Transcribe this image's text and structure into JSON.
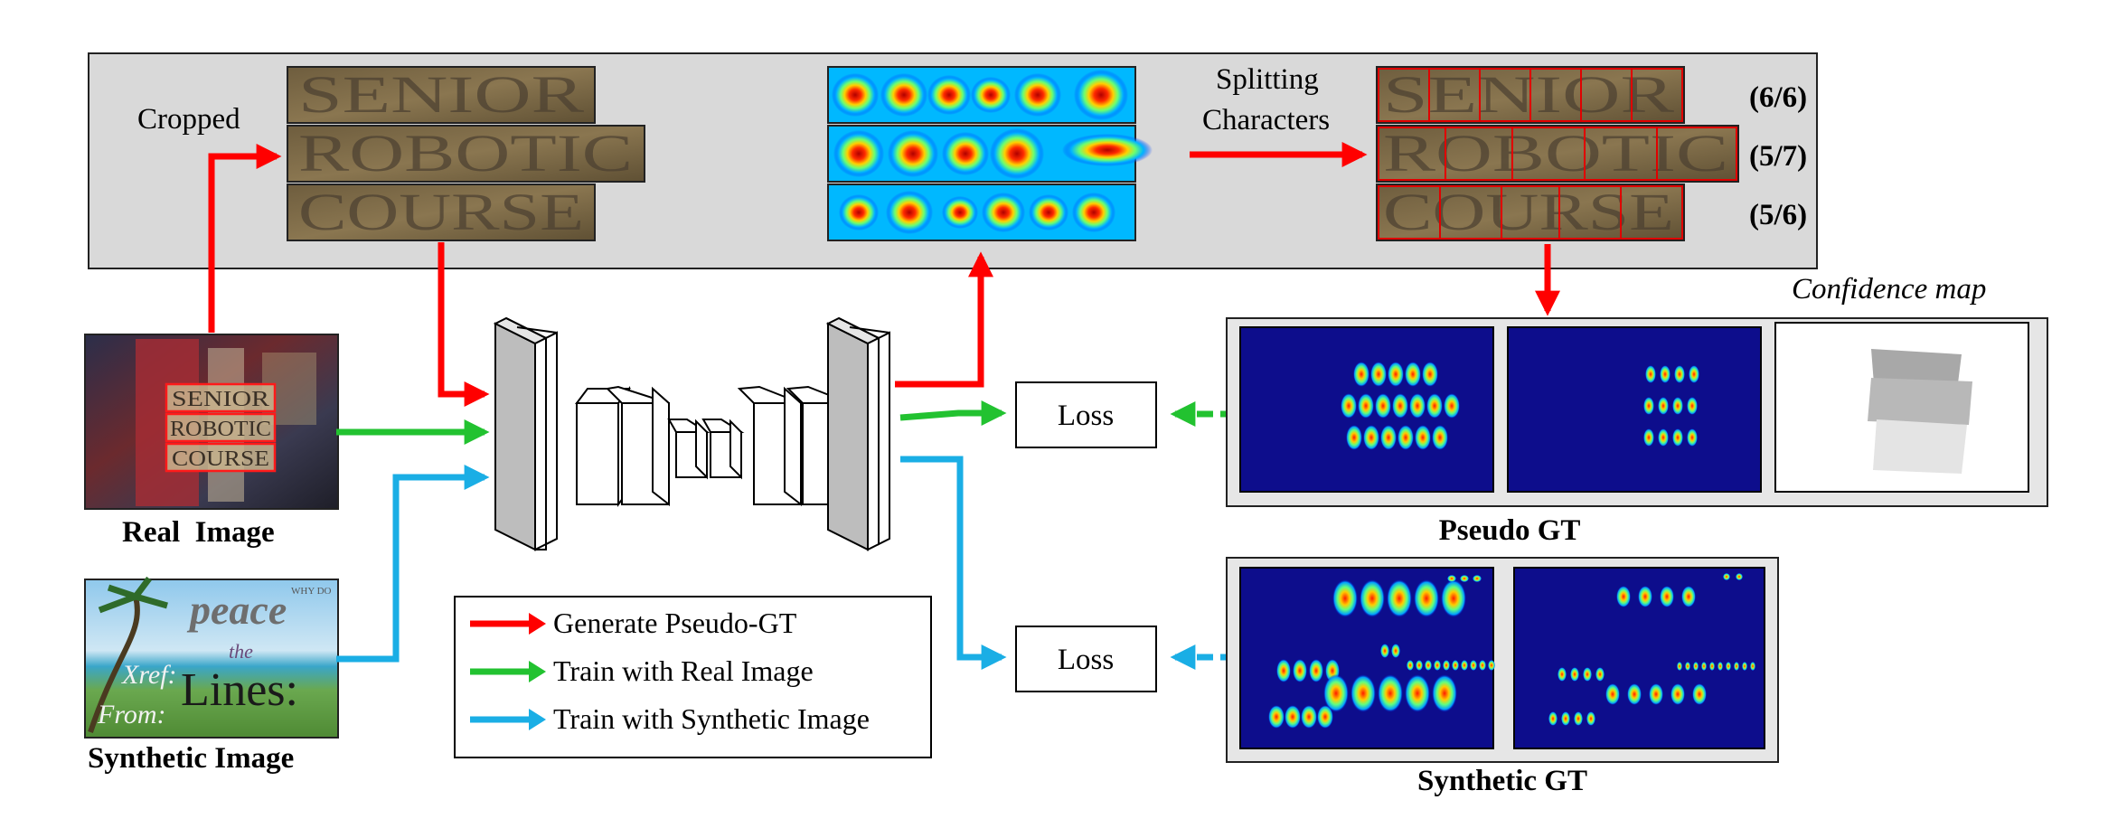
{
  "labels": {
    "cropped": "Cropped",
    "splitting_line1": "Splitting",
    "splitting_line2": "Characters",
    "confidence_map": "Confidence map",
    "pseudo_gt": "Pseudo GT",
    "synthetic_gt": "Synthetic GT",
    "real_image": "Real  Image",
    "synthetic_image": "Synthetic Image",
    "loss_top": "Loss",
    "loss_bottom": "Loss"
  },
  "words": [
    "SENIOR",
    "ROBOTIC",
    "COURSE"
  ],
  "ratios": [
    "(6/6)",
    "(5/7)",
    "(5/6)"
  ],
  "legend": [
    {
      "label": "Generate Pseudo-GT",
      "color": "#ff0000"
    },
    {
      "label": "Train with Real Image",
      "color": "#22c230"
    },
    {
      "label": "Train with Synthetic Image",
      "color": "#1aaee5"
    }
  ],
  "synthetic_texts": {
    "peace": "peace",
    "the": "the",
    "xref": "Xref:",
    "lines": "Lines:",
    "from": "From:",
    "corner": "WHY DO"
  },
  "colors": {
    "red": "#ff0000",
    "green": "#22c230",
    "blue": "#1aaee5",
    "panel_gray": "#d9d9d9",
    "heatmap_bg": "#0d0d8c"
  }
}
